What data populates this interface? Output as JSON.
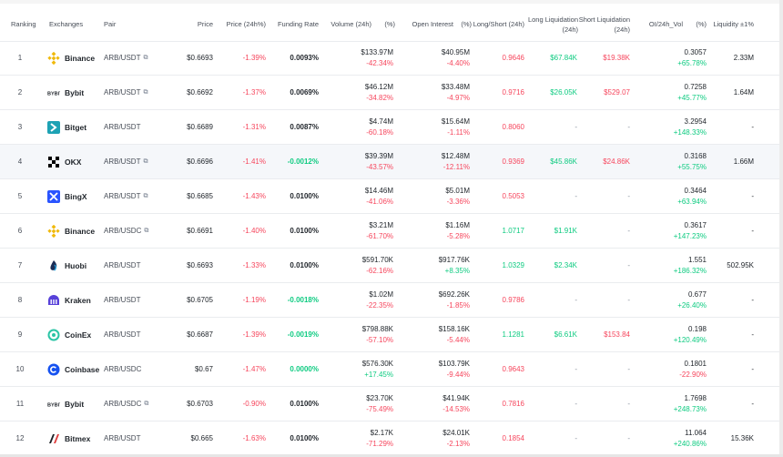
{
  "headers": {
    "ranking": "Ranking",
    "exchanges": "Exchanges",
    "pair": "Pair",
    "price": "Price",
    "price_change": "Price (24h%)",
    "funding_rate": "Funding Rate",
    "volume": "Volume (24h)",
    "volume_pct": "(%)",
    "open_interest": "Open Interest",
    "oi_pct": "(%)",
    "long_short": "Long/Short (24h)",
    "long_liq_1": "Long Liquidation",
    "long_liq_2": "(24h)",
    "short_liq_1": "Short Liquidation",
    "short_liq_2": "(24h)",
    "oi_vol": "OI/24h_Vol",
    "oi_vol_pct": "(%)",
    "liquidity": "Liquidity ±1%"
  },
  "rows": [
    {
      "rank": "1",
      "exchange": "Binance",
      "logo": "binance-logo",
      "pair": "ARB/USDT",
      "ext": "⧉",
      "price": "$0.6693",
      "change": "-1.39%",
      "funding": "0.0093%",
      "volume": "$133.97M",
      "volume_pct": "-42.34%",
      "oi": "$40.95M",
      "oi_pct": "-4.40%",
      "ls": "0.9646",
      "long_liq": "$67.84K",
      "short_liq": "$19.38K",
      "oi_vol": "0.3057",
      "oi_vol_pct": "+65.78%",
      "liquidity": "2.33M"
    },
    {
      "rank": "2",
      "exchange": "Bybit",
      "logo": "bybit-logo",
      "pair": "ARB/USDT",
      "ext": "⧉",
      "price": "$0.6692",
      "change": "-1.37%",
      "funding": "0.0069%",
      "volume": "$46.12M",
      "volume_pct": "-34.82%",
      "oi": "$33.48M",
      "oi_pct": "-4.97%",
      "ls": "0.9716",
      "long_liq": "$26.05K",
      "short_liq": "$529.07",
      "oi_vol": "0.7258",
      "oi_vol_pct": "+45.77%",
      "liquidity": "1.64M"
    },
    {
      "rank": "3",
      "exchange": "Bitget",
      "logo": "bitget-logo",
      "pair": "ARB/USDT",
      "ext": "",
      "price": "$0.6689",
      "change": "-1.31%",
      "funding": "0.0087%",
      "volume": "$4.74M",
      "volume_pct": "-60.18%",
      "oi": "$15.64M",
      "oi_pct": "-1.11%",
      "ls": "0.8060",
      "long_liq": "-",
      "short_liq": "-",
      "oi_vol": "3.2954",
      "oi_vol_pct": "+148.33%",
      "liquidity": "-"
    },
    {
      "rank": "4",
      "exchange": "OKX",
      "logo": "okx-logo",
      "pair": "ARB/USDT",
      "ext": "⧉",
      "price": "$0.6696",
      "change": "-1.41%",
      "funding": "-0.0012%",
      "volume": "$39.39M",
      "volume_pct": "-43.57%",
      "oi": "$12.48M",
      "oi_pct": "-12.11%",
      "ls": "0.9369",
      "long_liq": "$45.86K",
      "short_liq": "$24.86K",
      "oi_vol": "0.3168",
      "oi_vol_pct": "+55.75%",
      "liquidity": "1.66M"
    },
    {
      "rank": "5",
      "exchange": "BingX",
      "logo": "bingx-logo",
      "pair": "ARB/USDT",
      "ext": "⧉",
      "price": "$0.6685",
      "change": "-1.43%",
      "funding": "0.0100%",
      "volume": "$14.46M",
      "volume_pct": "-41.06%",
      "oi": "$5.01M",
      "oi_pct": "-3.36%",
      "ls": "0.5053",
      "long_liq": "-",
      "short_liq": "-",
      "oi_vol": "0.3464",
      "oi_vol_pct": "+63.94%",
      "liquidity": "-"
    },
    {
      "rank": "6",
      "exchange": "Binance",
      "logo": "binance-logo",
      "pair": "ARB/USDC",
      "ext": "⧉",
      "price": "$0.6691",
      "change": "-1.40%",
      "funding": "0.0100%",
      "volume": "$3.21M",
      "volume_pct": "-61.70%",
      "oi": "$1.16M",
      "oi_pct": "-5.28%",
      "ls": "1.0717",
      "long_liq": "$1.91K",
      "short_liq": "-",
      "oi_vol": "0.3617",
      "oi_vol_pct": "+147.23%",
      "liquidity": "-"
    },
    {
      "rank": "7",
      "exchange": "Huobi",
      "logo": "huobi-logo",
      "pair": "ARB/USDT",
      "ext": "",
      "price": "$0.6693",
      "change": "-1.33%",
      "funding": "0.0100%",
      "volume": "$591.70K",
      "volume_pct": "-62.16%",
      "oi": "$917.76K",
      "oi_pct": "+8.35%",
      "ls": "1.0329",
      "long_liq": "$2.34K",
      "short_liq": "-",
      "oi_vol": "1.551",
      "oi_vol_pct": "+186.32%",
      "liquidity": "502.95K"
    },
    {
      "rank": "8",
      "exchange": "Kraken",
      "logo": "kraken-logo",
      "pair": "ARB/USDT",
      "ext": "",
      "price": "$0.6705",
      "change": "-1.19%",
      "funding": "-0.0018%",
      "volume": "$1.02M",
      "volume_pct": "-22.35%",
      "oi": "$692.26K",
      "oi_pct": "-1.85%",
      "ls": "0.9786",
      "long_liq": "-",
      "short_liq": "-",
      "oi_vol": "0.677",
      "oi_vol_pct": "+26.40%",
      "liquidity": "-"
    },
    {
      "rank": "9",
      "exchange": "CoinEx",
      "logo": "coinex-logo",
      "pair": "ARB/USDT",
      "ext": "",
      "price": "$0.6687",
      "change": "-1.39%",
      "funding": "-0.0019%",
      "volume": "$798.88K",
      "volume_pct": "-57.10%",
      "oi": "$158.16K",
      "oi_pct": "-5.44%",
      "ls": "1.1281",
      "long_liq": "$6.61K",
      "short_liq": "$153.84",
      "oi_vol": "0.198",
      "oi_vol_pct": "+120.49%",
      "liquidity": "-"
    },
    {
      "rank": "10",
      "exchange": "Coinbase",
      "logo": "coinbase-logo",
      "pair": "ARB/USDC",
      "ext": "",
      "price": "$0.67",
      "change": "-1.47%",
      "funding": "0.0000%",
      "volume": "$576.30K",
      "volume_pct": "+17.45%",
      "oi": "$103.79K",
      "oi_pct": "-9.44%",
      "ls": "0.9643",
      "long_liq": "-",
      "short_liq": "-",
      "oi_vol": "0.1801",
      "oi_vol_pct": "-22.90%",
      "liquidity": "-"
    },
    {
      "rank": "11",
      "exchange": "Bybit",
      "logo": "bybit-logo",
      "pair": "ARB/USDC",
      "ext": "⧉",
      "price": "$0.6703",
      "change": "-0.90%",
      "funding": "0.0100%",
      "volume": "$23.70K",
      "volume_pct": "-75.49%",
      "oi": "$41.94K",
      "oi_pct": "-14.53%",
      "ls": "0.7816",
      "long_liq": "-",
      "short_liq": "-",
      "oi_vol": "1.7698",
      "oi_vol_pct": "+248.73%",
      "liquidity": "-"
    },
    {
      "rank": "12",
      "exchange": "Bitmex",
      "logo": "bitmex-logo",
      "pair": "ARB/USDT",
      "ext": "",
      "price": "$0.665",
      "change": "-1.63%",
      "funding": "0.0100%",
      "volume": "$2.17K",
      "volume_pct": "-71.29%",
      "oi": "$24.01K",
      "oi_pct": "-2.13%",
      "ls": "0.1854",
      "long_liq": "-",
      "short_liq": "-",
      "oi_vol": "11.064",
      "oi_vol_pct": "+240.86%",
      "liquidity": "15.36K"
    }
  ],
  "colors": {
    "up": "#0ecb81",
    "down": "#f6465d",
    "text": "#1e2329",
    "muted": "#474d57"
  }
}
